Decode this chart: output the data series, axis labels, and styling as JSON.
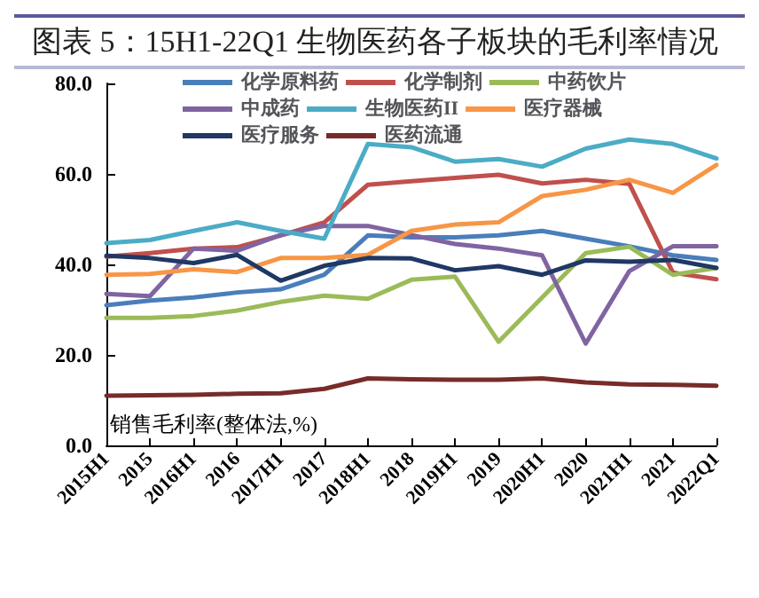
{
  "chart_data": {
    "type": "line",
    "title": "图表 5：15H1-22Q1 生物医药各子板块的毛利率情况",
    "ylabel": "销售毛利率(整体法,%)",
    "categories": [
      "2015H1",
      "2015",
      "2016H1",
      "2016",
      "2017H1",
      "2017",
      "2018H1",
      "2018",
      "2019H1",
      "2019",
      "2020H1",
      "2020",
      "2021H1",
      "2021",
      "2022Q1"
    ],
    "series": [
      {
        "name": "化学原料药",
        "color": "#4a7ebb",
        "values": [
          31,
          32,
          32.7,
          33.8,
          34.5,
          37.7,
          46.4,
          46,
          46,
          46.4,
          47.4,
          45.7,
          44,
          42,
          41
        ]
      },
      {
        "name": "化学制剂",
        "color": "#c0504d",
        "values": [
          41.7,
          42.5,
          43.5,
          43.8,
          46.4,
          49.3,
          57.6,
          58.4,
          59.1,
          59.8,
          57.9,
          58.7,
          57.8,
          38.2,
          36.7
        ]
      },
      {
        "name": "中药饮片",
        "color": "#9bbb59",
        "values": [
          28.2,
          28.2,
          28.6,
          29.8,
          31.7,
          33.1,
          32.4,
          36.6,
          37.3,
          22.9,
          32.7,
          42.5,
          43.9,
          37.7,
          39.2
        ]
      },
      {
        "name": "中成药",
        "color": "#8064a2",
        "values": [
          33.5,
          33,
          43.5,
          43,
          46.5,
          48.5,
          48.5,
          46.5,
          44.5,
          43.5,
          42,
          22.5,
          38.5,
          44,
          44
        ]
      },
      {
        "name": "生物医药II",
        "color": "#4bacc6",
        "values": [
          44.7,
          45.4,
          47.4,
          49.3,
          47.4,
          45.7,
          66.6,
          65.9,
          62.7,
          63.3,
          61.6,
          65.6,
          67.6,
          66.6,
          63.4
        ]
      },
      {
        "name": "医疗器械",
        "color": "#f79646",
        "values": [
          37.7,
          37.9,
          38.9,
          38.3,
          41.4,
          41.4,
          42.1,
          47.4,
          48.8,
          49.3,
          55.1,
          56.5,
          58.7,
          55.8,
          62
        ]
      },
      {
        "name": "医疗服务",
        "color": "#1f3864",
        "values": [
          41.9,
          41.4,
          40.3,
          42.1,
          36.4,
          39.7,
          41.4,
          41.3,
          38.7,
          39.6,
          37.7,
          40.9,
          40.6,
          41,
          39.2
        ]
      },
      {
        "name": "医药流通",
        "color": "#772c2a",
        "values": [
          11,
          11.1,
          11.2,
          11.4,
          11.5,
          12.5,
          14.8,
          14.6,
          14.5,
          14.5,
          14.8,
          13.9,
          13.5,
          13.4,
          13.2
        ]
      }
    ],
    "ylim": [
      0,
      80
    ],
    "yticks": [
      {
        "value": 0,
        "label": "0.0"
      },
      {
        "value": 20,
        "label": "20.0"
      },
      {
        "value": 40,
        "label": "40.0"
      },
      {
        "value": 60,
        "label": "60.0"
      },
      {
        "value": 80,
        "label": "80.0"
      }
    ],
    "grid": false,
    "legend": "top",
    "marker": "none",
    "line_style": "solid"
  }
}
